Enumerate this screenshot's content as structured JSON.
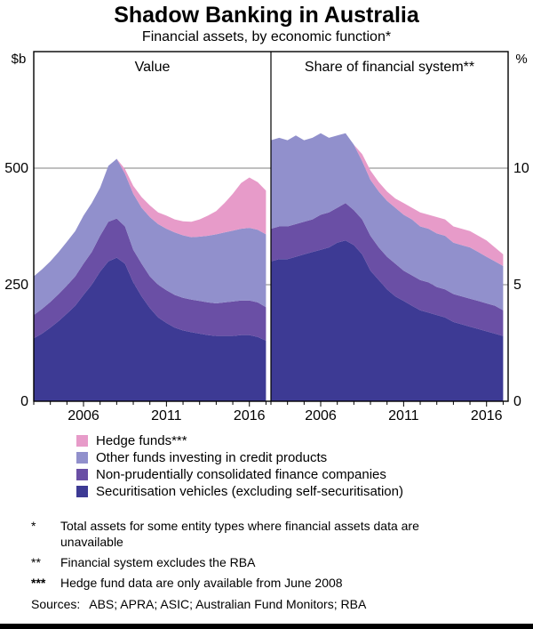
{
  "title": "Shadow Banking in Australia",
  "subtitle": "Financial assets, by economic function*",
  "colors": {
    "hedge_funds": "#e79bc9",
    "other_funds": "#9190cc",
    "finance_companies": "#6a4fa5",
    "securitisation": "#3d3a94",
    "gridline": "#808080",
    "frame": "#000000"
  },
  "chart_data": [
    {
      "type": "area",
      "stacked": true,
      "title": "Value",
      "axis_label": "$b",
      "axis_side": "left",
      "ylim": [
        0,
        750
      ],
      "yticks": [
        0,
        250,
        500
      ],
      "xticks": [
        2006,
        2011,
        2016
      ],
      "x": [
        2003,
        2003.5,
        2004,
        2004.5,
        2005,
        2005.5,
        2006,
        2006.5,
        2007,
        2007.5,
        2008,
        2008.5,
        2009,
        2009.5,
        2010,
        2010.5,
        2011,
        2011.5,
        2012,
        2012.5,
        2013,
        2013.5,
        2014,
        2014.5,
        2015,
        2015.5,
        2016,
        2016.5,
        2017
      ],
      "series": [
        {
          "id": "securitisation-vehicles",
          "name": "Securitisation vehicles (excluding self-securitisation)",
          "color": "#3d3a94",
          "values": [
            135,
            145,
            158,
            172,
            188,
            205,
            228,
            250,
            278,
            300,
            308,
            295,
            255,
            225,
            200,
            180,
            168,
            158,
            152,
            148,
            145,
            142,
            140,
            140,
            140,
            142,
            142,
            138,
            130
          ]
        },
        {
          "id": "finance-companies",
          "name": "Non-prudentially consolidated finance companies",
          "color": "#6a4fa5",
          "values": [
            50,
            53,
            55,
            58,
            60,
            63,
            67,
            70,
            77,
            85,
            84,
            80,
            70,
            70,
            68,
            70,
            70,
            70,
            70,
            70,
            70,
            70,
            70,
            72,
            74,
            74,
            74,
            74,
            72
          ]
        },
        {
          "id": "other-funds",
          "name": "Other funds investing in credit products",
          "color": "#9190cc",
          "values": [
            83,
            85,
            87,
            90,
            94,
            97,
            103,
            105,
            103,
            120,
            128,
            113,
            120,
            120,
            127,
            130,
            132,
            134,
            134,
            134,
            138,
            143,
            148,
            150,
            152,
            154,
            156,
            156,
            156
          ]
        },
        {
          "id": "hedge-funds",
          "name": "Hedge funds***",
          "color": "#e79bc9",
          "values": [
            0,
            0,
            0,
            0,
            0,
            0,
            0,
            0,
            0,
            0,
            0,
            10,
            17,
            23,
            25,
            25,
            28,
            28,
            30,
            33,
            37,
            43,
            50,
            63,
            79,
            98,
            108,
            102,
            94
          ]
        }
      ]
    },
    {
      "type": "area",
      "stacked": true,
      "title": "Share of financial system**",
      "axis_label": "%",
      "axis_side": "right",
      "ylim": [
        0,
        15
      ],
      "yticks": [
        0,
        5,
        10
      ],
      "xticks": [
        2006,
        2011,
        2016
      ],
      "x": [
        2003,
        2003.5,
        2004,
        2004.5,
        2005,
        2005.5,
        2006,
        2006.5,
        2007,
        2007.5,
        2008,
        2008.5,
        2009,
        2009.5,
        2010,
        2010.5,
        2011,
        2011.5,
        2012,
        2012.5,
        2013,
        2013.5,
        2014,
        2014.5,
        2015,
        2015.5,
        2016,
        2016.5,
        2017
      ],
      "series": [
        {
          "id": "securitisation-vehicles",
          "name": "Securitisation vehicles (excluding self-securitisation)",
          "color": "#3d3a94",
          "values": [
            6.0,
            6.1,
            6.1,
            6.2,
            6.3,
            6.4,
            6.5,
            6.6,
            6.8,
            6.9,
            6.7,
            6.3,
            5.6,
            5.2,
            4.8,
            4.5,
            4.3,
            4.1,
            3.9,
            3.8,
            3.7,
            3.6,
            3.4,
            3.3,
            3.2,
            3.1,
            3.0,
            2.9,
            2.8
          ]
        },
        {
          "id": "finance-companies",
          "name": "Non-prudentially consolidated finance companies",
          "color": "#6a4fa5",
          "values": [
            1.4,
            1.4,
            1.4,
            1.4,
            1.4,
            1.4,
            1.5,
            1.5,
            1.5,
            1.6,
            1.5,
            1.5,
            1.5,
            1.4,
            1.4,
            1.4,
            1.3,
            1.3,
            1.3,
            1.3,
            1.2,
            1.2,
            1.2,
            1.2,
            1.2,
            1.2,
            1.2,
            1.2,
            1.1
          ]
        },
        {
          "id": "other-funds",
          "name": "Other funds investing in credit products",
          "color": "#9190cc",
          "values": [
            3.8,
            3.8,
            3.7,
            3.8,
            3.5,
            3.5,
            3.5,
            3.2,
            3.1,
            3.0,
            2.8,
            2.5,
            2.4,
            2.4,
            2.4,
            2.4,
            2.4,
            2.4,
            2.3,
            2.3,
            2.3,
            2.3,
            2.2,
            2.2,
            2.2,
            2.1,
            2.0,
            1.9,
            1.9
          ]
        },
        {
          "id": "hedge-funds",
          "name": "Hedge funds***",
          "color": "#e79bc9",
          "values": [
            0,
            0,
            0,
            0,
            0,
            0,
            0,
            0,
            0,
            0,
            0,
            0.3,
            0.4,
            0.4,
            0.4,
            0.4,
            0.5,
            0.5,
            0.6,
            0.6,
            0.7,
            0.7,
            0.7,
            0.7,
            0.7,
            0.7,
            0.7,
            0.6,
            0.5
          ]
        }
      ]
    }
  ],
  "legend": [
    {
      "label": "Hedge funds***",
      "color": "#e79bc9"
    },
    {
      "label": "Other funds investing in credit products",
      "color": "#9190cc"
    },
    {
      "label": "Non-prudentially consolidated finance companies",
      "color": "#6a4fa5"
    },
    {
      "label": "Securitisation vehicles (excluding self-securitisation)",
      "color": "#3d3a94"
    }
  ],
  "footnotes": [
    {
      "marker": "*",
      "bold": false,
      "text": "Total assets for some entity types where financial assets data are unavailable"
    },
    {
      "marker": "**",
      "bold": false,
      "text": "Financial system excludes the RBA"
    },
    {
      "marker": "***",
      "bold": true,
      "text": "Hedge fund data are only available from June 2008"
    }
  ],
  "sources_label": "Sources:",
  "sources_text": "ABS; APRA; ASIC; Australian Fund Monitors; RBA"
}
